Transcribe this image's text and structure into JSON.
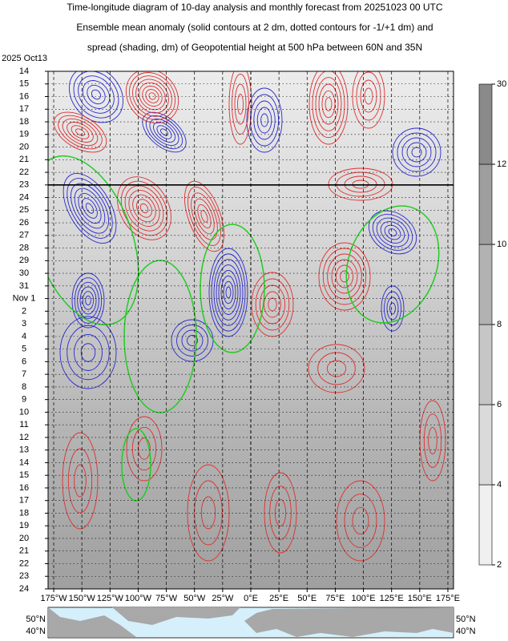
{
  "chart_data": {
    "type": "hovmoller",
    "title_lines": [
      "Time-longitude diagram of 10-day analysis and monthly forecast from 20251023 00 UTC",
      "Ensemble mean anomaly (solid contours at 2 dm, dotted contours for -1/+1 dm) and",
      "spread (shading, dm) of Geopotential height at 500 hPa between 60N and 35N"
    ],
    "xlim": [
      -180,
      180
    ],
    "xticks": [
      {
        "value": -175,
        "label": "175°W"
      },
      {
        "value": -150,
        "label": "150°W"
      },
      {
        "value": -125,
        "label": "125°W"
      },
      {
        "value": -100,
        "label": "100°W"
      },
      {
        "value": -75,
        "label": "75°W"
      },
      {
        "value": -50,
        "label": "50°W"
      },
      {
        "value": -25,
        "label": "25°W"
      },
      {
        "value": 0,
        "label": "0°E"
      },
      {
        "value": 25,
        "label": "25°E"
      },
      {
        "value": 50,
        "label": "50°E"
      },
      {
        "value": 75,
        "label": "75°E"
      },
      {
        "value": 100,
        "label": "100°E"
      },
      {
        "value": 125,
        "label": "125°E"
      },
      {
        "value": 150,
        "label": "150°E"
      },
      {
        "value": 175,
        "label": "175°E"
      }
    ],
    "ylim": [
      1,
      42
    ],
    "yticks": [
      {
        "value": 0,
        "label": "2025 Oct13"
      },
      {
        "value": 1,
        "label": "14"
      },
      {
        "value": 2,
        "label": "15"
      },
      {
        "value": 3,
        "label": "16"
      },
      {
        "value": 4,
        "label": "17"
      },
      {
        "value": 5,
        "label": "18"
      },
      {
        "value": 6,
        "label": "19",
        "color": "#e8202a"
      },
      {
        "value": 7,
        "label": "20"
      },
      {
        "value": 8,
        "label": "21"
      },
      {
        "value": 9,
        "label": "22"
      },
      {
        "value": 10,
        "label": "23"
      },
      {
        "value": 11,
        "label": "24"
      },
      {
        "value": 12,
        "label": "25"
      },
      {
        "value": 13,
        "label": "26",
        "color": "#e8202a"
      },
      {
        "value": 14,
        "label": "27"
      },
      {
        "value": 15,
        "label": "28"
      },
      {
        "value": 16,
        "label": "29"
      },
      {
        "value": 17,
        "label": "30"
      },
      {
        "value": 18,
        "label": "31"
      },
      {
        "value": 19,
        "label": "Nov 1"
      },
      {
        "value": 20,
        "label": "2",
        "color": "#e8202a"
      },
      {
        "value": 21,
        "label": "3"
      },
      {
        "value": 22,
        "label": "4"
      },
      {
        "value": 23,
        "label": "5"
      },
      {
        "value": 24,
        "label": "6"
      },
      {
        "value": 25,
        "label": "7"
      },
      {
        "value": 26,
        "label": "8"
      },
      {
        "value": 27,
        "label": "9",
        "color": "#e8202a"
      },
      {
        "value": 28,
        "label": "10"
      },
      {
        "value": 29,
        "label": "11"
      },
      {
        "value": 30,
        "label": "12"
      },
      {
        "value": 31,
        "label": "13"
      },
      {
        "value": 32,
        "label": "14"
      },
      {
        "value": 33,
        "label": "15"
      },
      {
        "value": 34,
        "label": "16",
        "color": "#e8202a"
      },
      {
        "value": 35,
        "label": "17"
      },
      {
        "value": 36,
        "label": "18"
      },
      {
        "value": 37,
        "label": "19"
      },
      {
        "value": 38,
        "label": "20"
      },
      {
        "value": 39,
        "label": "21"
      },
      {
        "value": 40,
        "label": "22"
      },
      {
        "value": 41,
        "label": "23",
        "color": "#e8202a"
      },
      {
        "value": 42,
        "label": "24"
      }
    ],
    "analysis_end": 10,
    "grid": true,
    "colorbar": {
      "ticks": [
        2,
        4,
        6,
        8,
        10,
        12,
        30
      ],
      "colors": [
        "#f0f0f0",
        "#dadada",
        "#c6c6c6",
        "#b2b2b2",
        "#9e9e9e",
        "#8a8a8a"
      ],
      "label_color": "#1a237e"
    },
    "map_labels": {
      "left": [
        "50°N",
        "40°N"
      ],
      "right": [
        "50°N",
        "40°N"
      ]
    }
  }
}
